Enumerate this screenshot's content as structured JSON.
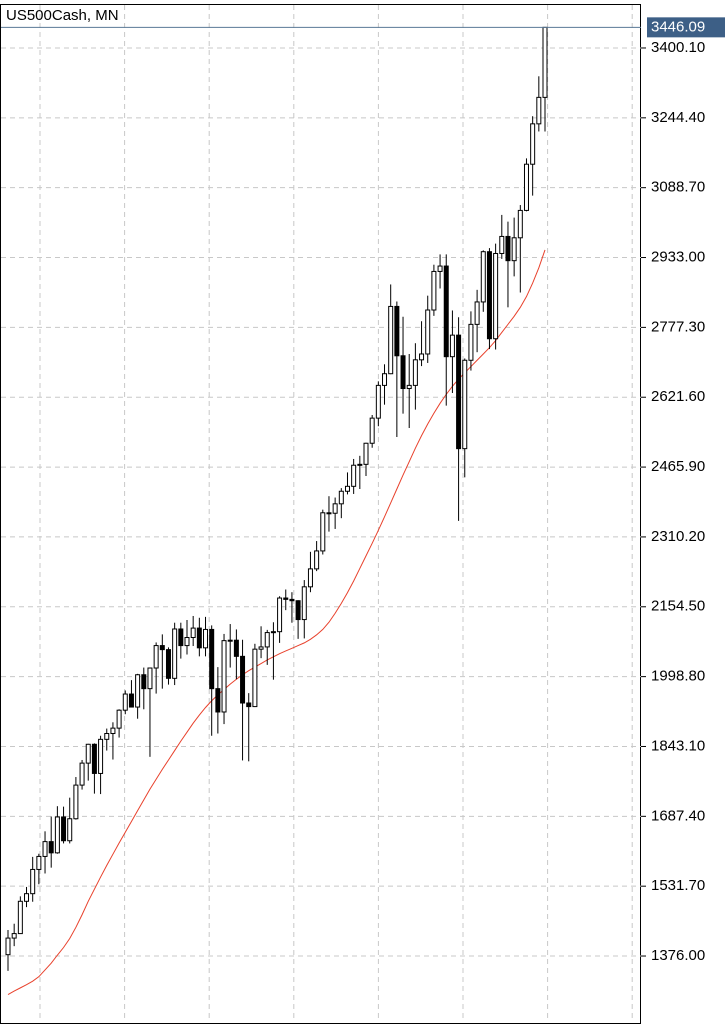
{
  "chart_data": {
    "type": "candlestick",
    "title": "US500Cash, MN",
    "open": [
      1379,
      1416,
      1426,
      1498,
      1515,
      1569,
      1598,
      1631,
      1606,
      1686,
      1633,
      1682,
      1757,
      1806,
      1848,
      1783,
      1859,
      1872,
      1884,
      1924,
      1960,
      1931,
      2003,
      1972,
      2018,
      2068,
      2059,
      1995,
      2105,
      2068,
      2086,
      2107,
      2063,
      2104,
      1972,
      1920,
      2079,
      2080,
      2044,
      1940,
      1932,
      2060,
      2065,
      2097,
      2099,
      2174,
      2171,
      2168,
      2126,
      2199,
      2239,
      2279,
      2364,
      2363,
      2384,
      2412,
      2423,
      2470,
      2472,
      2519,
      2575,
      2648,
      2674,
      2824,
      2714,
      2641,
      2648,
      2705,
      2718,
      2816,
      2902,
      2914,
      2712,
      2760,
      2507,
      2704,
      2784,
      2834,
      2946,
      2752,
      2942,
      2980,
      2926,
      2977,
      3038,
      3141,
      3231,
      3290
    ],
    "high": [
      1434,
      1448,
      1509,
      1530,
      1597,
      1604,
      1654,
      1687,
      1710,
      1709,
      1729,
      1775,
      1813,
      1849,
      1850,
      1867,
      1883,
      1897,
      1926,
      1968,
      1991,
      2005,
      2019,
      2019,
      2075,
      2093,
      2064,
      2119,
      2119,
      2125,
      2134,
      2130,
      2132,
      2113,
      2020,
      2094,
      2116,
      2104,
      2081,
      1962,
      2072,
      2111,
      2103,
      2120,
      2178,
      2193,
      2187,
      2169,
      2214,
      2277,
      2301,
      2371,
      2401,
      2398,
      2419,
      2454,
      2484,
      2491,
      2520,
      2582,
      2657,
      2695,
      2873,
      2835,
      2801,
      2718,
      2742,
      2791,
      2848,
      2917,
      2940,
      2940,
      2815,
      2800,
      2708,
      2813,
      2861,
      2949,
      2954,
      2964,
      3028,
      3013,
      3022,
      3050,
      3154,
      3248,
      3337,
      3446.09
    ],
    "low": [
      1343,
      1398,
      1426,
      1485,
      1497,
      1536,
      1560,
      1573,
      1604,
      1627,
      1627,
      1680,
      1747,
      1767,
      1738,
      1737,
      1834,
      1814,
      1863,
      1915,
      1930,
      1905,
      1926,
      1820,
      1961,
      1972,
      1981,
      1980,
      2039,
      2048,
      2067,
      2044,
      2044,
      1867,
      1872,
      1893,
      2019,
      1993,
      1812,
      1810,
      1931,
      2040,
      2025,
      1992,
      2074,
      2147,
      2119,
      2083,
      2084,
      2187,
      2234,
      2271,
      2322,
      2328,
      2352,
      2405,
      2406,
      2417,
      2446,
      2509,
      2557,
      2605,
      2673,
      2533,
      2585,
      2553,
      2594,
      2691,
      2698,
      2803,
      2864,
      2603,
      2631,
      2346,
      2443,
      2681,
      2722,
      2812,
      2729,
      2728,
      2930,
      2822,
      2891,
      2855,
      3036,
      3071,
      3214,
      3214
    ],
    "close": [
      1416,
      1426,
      1498,
      1515,
      1569,
      1598,
      1631,
      1606,
      1686,
      1633,
      1682,
      1757,
      1806,
      1848,
      1783,
      1859,
      1872,
      1884,
      1924,
      1960,
      1931,
      2003,
      1972,
      2018,
      2068,
      2059,
      1995,
      2105,
      2068,
      2086,
      2107,
      2063,
      2104,
      1972,
      1920,
      2079,
      2080,
      2044,
      1940,
      1932,
      2060,
      2065,
      2097,
      2099,
      2174,
      2171,
      2168,
      2126,
      2199,
      2239,
      2279,
      2364,
      2363,
      2384,
      2412,
      2423,
      2470,
      2472,
      2519,
      2575,
      2648,
      2674,
      2824,
      2714,
      2641,
      2648,
      2705,
      2718,
      2816,
      2902,
      2914,
      2712,
      2760,
      2507,
      2704,
      2784,
      2834,
      2946,
      2752,
      2942,
      2980,
      2926,
      2977,
      3038,
      3141,
      3231,
      3290,
      3446.09
    ],
    "ma": {
      "color": "#e8412c",
      "values": [
        1290,
        1298,
        1305,
        1312,
        1320,
        1330,
        1345,
        1360,
        1378,
        1395,
        1415,
        1440,
        1468,
        1498,
        1525,
        1552,
        1578,
        1603,
        1628,
        1652,
        1676,
        1700,
        1724,
        1748,
        1770,
        1792,
        1813,
        1834,
        1855,
        1875,
        1895,
        1913,
        1930,
        1945,
        1958,
        1970,
        1982,
        1993,
        2003,
        2012,
        2020,
        2028,
        2036,
        2043,
        2050,
        2056,
        2062,
        2068,
        2074,
        2082,
        2092,
        2104,
        2120,
        2140,
        2162,
        2186,
        2212,
        2240,
        2268,
        2296,
        2325,
        2355,
        2386,
        2417,
        2448,
        2478,
        2508,
        2536,
        2562,
        2586,
        2608,
        2628,
        2646,
        2662,
        2676,
        2690,
        2704,
        2718,
        2732,
        2748,
        2766,
        2784,
        2802,
        2822,
        2846,
        2876,
        2910,
        2950
      ]
    },
    "ylim": [
      1233.4,
      3495.9
    ],
    "yticks": [
      {
        "value": 3400.1,
        "label": "3400.10"
      },
      {
        "value": 3244.4,
        "label": "3244.40"
      },
      {
        "value": 3088.7,
        "label": "3088.70"
      },
      {
        "value": 2933,
        "label": "2933.00"
      },
      {
        "value": 2777.3,
        "label": "2777.30"
      },
      {
        "value": 2621.6,
        "label": "2621.60"
      },
      {
        "value": 2465.9,
        "label": "2465.90"
      },
      {
        "value": 2310.2,
        "label": "2310.20"
      },
      {
        "value": 2154.5,
        "label": "2154.50"
      },
      {
        "value": 1998.8,
        "label": "1998.80"
      },
      {
        "value": 1843.1,
        "label": "1843.10"
      },
      {
        "value": 1687.4,
        "label": "1687.40"
      },
      {
        "value": 1531.7,
        "label": "1531.70"
      },
      {
        "value": 1376,
        "label": "1376.00"
      }
    ],
    "grid": true
  }
}
